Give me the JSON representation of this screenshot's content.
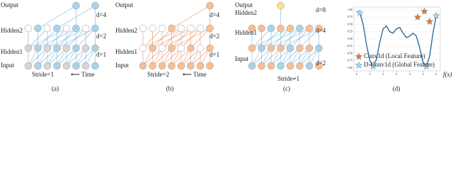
{
  "panels": [
    {
      "caption": "(a)",
      "rows": [
        "Output",
        "Hidden2",
        "Hidden1",
        "Input"
      ],
      "dilations": [
        "d=4",
        "d=2",
        "d=1"
      ],
      "stride": "Stride=1",
      "time": "⟵ Time"
    },
    {
      "caption": "(b)",
      "rows": [
        "Output",
        "Hidden2",
        "Hidden1",
        "Input"
      ],
      "dilations": [
        "d=4",
        "d=2",
        "d=1"
      ],
      "stride": "Stride=2",
      "time": "⟵ Time"
    },
    {
      "caption": "(c)",
      "rows": [
        "Output",
        "Hidden2",
        "Hidden1",
        "Input"
      ],
      "dilations": [
        "d=8",
        "d=4",
        "d=2"
      ],
      "stride": "Stride≠1"
    }
  ],
  "chart_data": {
    "type": "line",
    "caption": "(d)",
    "xlabel": "f(x)",
    "x": [
      0,
      0.25,
      0.5,
      0.75,
      1,
      1.25,
      1.5,
      1.75,
      2,
      2.25,
      2.5,
      2.75,
      3,
      3.25,
      3.5,
      3.75,
      4,
      4.25,
      4.5,
      4.75,
      5,
      5.25,
      5.5,
      5.75,
      6
    ],
    "values": [
      0.95,
      0.9,
      0.5,
      -0.2,
      -0.75,
      -0.95,
      -0.7,
      -0.1,
      0.35,
      0.45,
      0.25,
      0.2,
      0.35,
      0.4,
      0.2,
      0.05,
      0.1,
      0.2,
      0.1,
      -0.3,
      -0.8,
      -0.95,
      -0.6,
      0.2,
      0.8
    ],
    "color": "#2e6f9e",
    "series": [
      {
        "name": "Conv1d (Local Feature)",
        "color": "#e07b39",
        "x": [
          4.6,
          5.1,
          5.5
        ],
        "values": [
          0.75,
          0.95,
          0.6
        ]
      },
      {
        "name": "D-Conv1d (Global Feature)",
        "color": "#a9d3ea",
        "x": [
          0.25,
          1.25,
          5.25,
          6
        ],
        "values": [
          0.9,
          -0.95,
          -0.95,
          0.8
        ]
      }
    ],
    "xlim": [
      -0.2,
      6.3
    ],
    "ylim": [
      -1.1,
      1.1
    ],
    "xticks": [
      0,
      1,
      2,
      3,
      4,
      5,
      6
    ],
    "yticks": [
      {
        "value": 1,
        "label": "1.00"
      },
      {
        "value": 0.75,
        "label": "0.75"
      },
      {
        "value": 0.5,
        "label": "0.50"
      },
      {
        "value": 0.25,
        "label": "0.25"
      },
      {
        "value": 0,
        "label": "0.00"
      },
      {
        "value": -0.25,
        "label": "-0.25"
      },
      {
        "value": -0.5,
        "label": "-0.50"
      },
      {
        "value": -0.75,
        "label": "-0.75"
      },
      {
        "value": -1,
        "label": "-1.00"
      }
    ],
    "grid": true,
    "legend": "lower-left"
  }
}
